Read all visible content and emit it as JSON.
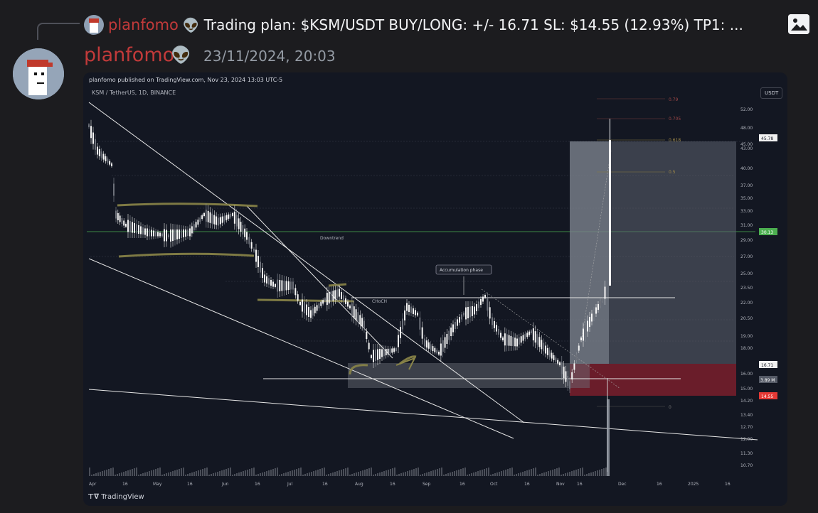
{
  "reply": {
    "author": "planfomo",
    "alien": "👽",
    "text": "Trading plan: $KSM/USDT  BUY/LONG: +/- 16.71  SL: $14.55 (12.93%)  TP1: ..."
  },
  "message": {
    "author": "planfomo",
    "alien": "👽",
    "timestamp": "23/11/2024, 20:03"
  },
  "chart": {
    "published": "planfomo published on TradingView.com, Nov 23, 2024 13:03 UTC-5",
    "symbol": "KSM / TetherUS, 1D, BINANCE",
    "currency": "USDT",
    "brand": "TradingView",
    "annotations": {
      "downtrend": "Downtrend",
      "accumulation": "Accumulation phase",
      "choch": "CHoCH"
    },
    "price_axis": [
      "52.00",
      "48.00",
      "45.00",
      "43.00",
      "40.00",
      "37.00",
      "35.00",
      "33.00",
      "31.00",
      "29.00",
      "27.00",
      "25.00",
      "23.50",
      "22.00",
      "20.50",
      "19.00",
      "18.00",
      "16.00",
      "15.00",
      "14.20",
      "13.40",
      "12.70",
      "12.00",
      "11.30",
      "10.70"
    ],
    "price_tags": {
      "current": "45.78",
      "green": "30.13",
      "entry": "16.71",
      "countdown": "3.89 M",
      "stop": "14.55"
    },
    "fib_labels": [
      "0.79",
      "0.705",
      "0.618",
      "0.5",
      "0"
    ],
    "time_axis": [
      "Apr",
      "16",
      "May",
      "16",
      "Jun",
      "16",
      "Jul",
      "16",
      "Aug",
      "16",
      "Sep",
      "16",
      "Oct",
      "16",
      "Nov",
      "16",
      "Dec",
      "16",
      "2025",
      "16"
    ],
    "colors": {
      "background": "#131722",
      "up": "#ffffff",
      "green_line": "#4caf50",
      "stop_zone": "#7a1f2b",
      "highlight": "#6b6a3a"
    }
  }
}
